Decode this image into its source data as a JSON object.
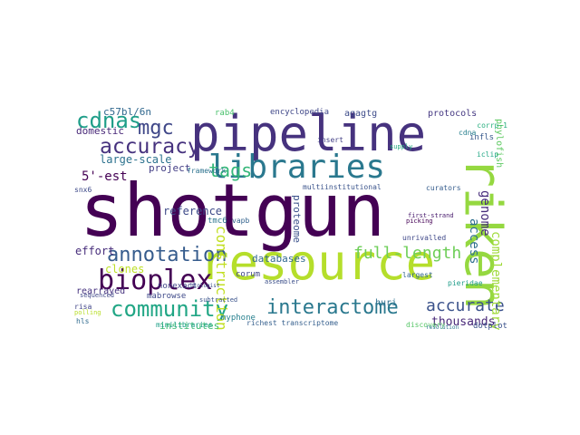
{
  "wordcloud": {
    "words": [
      {
        "text": "shotgun",
        "color": "#440154"
      },
      {
        "text": "pipeline",
        "color": "#46327e"
      },
      {
        "text": "resource",
        "color": "#b5de2b"
      },
      {
        "text": "libraries",
        "color": "#2a788e"
      },
      {
        "text": "riken",
        "color": "#95d840"
      },
      {
        "text": "bioplex",
        "color": "#440154"
      },
      {
        "text": "annotation",
        "color": "#365c8d"
      },
      {
        "text": "community",
        "color": "#21a685"
      },
      {
        "text": "interactome",
        "color": "#2a788e"
      },
      {
        "text": "accuracy",
        "color": "#46327e"
      },
      {
        "text": "cdnas",
        "color": "#1f9e89"
      },
      {
        "text": "tags",
        "color": "#35b779"
      },
      {
        "text": "mgc",
        "color": "#3f4788"
      },
      {
        "text": "full-length",
        "color": "#6ece58"
      },
      {
        "text": "accurate",
        "color": "#3b528b"
      },
      {
        "text": "complementary",
        "color": "#9fda3a"
      },
      {
        "text": "construction",
        "color": "#c2df23"
      },
      {
        "text": "access",
        "color": "#2e6f8e"
      },
      {
        "text": "genome",
        "color": "#472d7b"
      },
      {
        "text": "proteome",
        "color": "#3b528b"
      },
      {
        "text": "thousands",
        "color": "#482878"
      },
      {
        "text": "5'-est",
        "color": "#440154"
      },
      {
        "text": "large-scale",
        "color": "#2c728e"
      },
      {
        "text": "reference",
        "color": "#3e4a89"
      },
      {
        "text": "clones",
        "color": "#bddf26"
      },
      {
        "text": "databases",
        "color": "#31688e"
      },
      {
        "text": "institutes",
        "color": "#3dbc74"
      },
      {
        "text": "effort",
        "color": "#472d7b"
      },
      {
        "text": "domestic",
        "color": "#482878"
      },
      {
        "text": "rearrayed",
        "color": "#46337f"
      },
      {
        "text": "project",
        "color": "#433e85"
      },
      {
        "text": "c57bl/6n",
        "color": "#31688e"
      },
      {
        "text": "encyclopedia",
        "color": "#3f4788"
      },
      {
        "text": "agagtg",
        "color": "#3e4c8a"
      },
      {
        "text": "protocols",
        "color": "#453882"
      },
      {
        "text": "huri",
        "color": "#2d708e"
      },
      {
        "text": "nonexact",
        "color": "#414487"
      },
      {
        "text": "mabrowse",
        "color": "#3e4989"
      },
      {
        "text": "myphone",
        "color": "#27808e"
      },
      {
        "text": "minilibraries",
        "color": "#1fa088"
      },
      {
        "text": "phylofish",
        "color": "#5ec962"
      },
      {
        "text": "corum",
        "color": "#404688"
      },
      {
        "text": "tmc6",
        "color": "#2b758e"
      },
      {
        "text": "richest transcriptome",
        "color": "#355f8d"
      },
      {
        "text": "multiinstitutional",
        "color": "#3a538b"
      },
      {
        "text": "discovery",
        "color": "#56c667"
      },
      {
        "text": "dotplot",
        "color": "#3b528b"
      },
      {
        "text": "infls",
        "color": "#38598c"
      },
      {
        "text": "corrp-1",
        "color": "#29af7f"
      },
      {
        "text": "cdna",
        "color": "#277f8e"
      },
      {
        "text": "iclip",
        "color": "#22a785"
      },
      {
        "text": "framework",
        "color": "#2c728e"
      },
      {
        "text": "rab4",
        "color": "#4ac16d"
      },
      {
        "text": "snx6",
        "color": "#3e4a89"
      },
      {
        "text": "insert",
        "color": "#423f85"
      },
      {
        "text": "largest",
        "color": "#31668e"
      },
      {
        "text": "unrivalled",
        "color": "#3f4889"
      },
      {
        "text": "vapb",
        "color": "#33638d"
      },
      {
        "text": "risa",
        "color": "#404588"
      },
      {
        "text": "hls",
        "color": "#2f6b8e"
      },
      {
        "text": "polling",
        "color": "#b8de29"
      },
      {
        "text": "assembler",
        "color": "#3c4f8a"
      },
      {
        "text": "curators",
        "color": "#365d8d"
      },
      {
        "text": "picking",
        "color": "#440154"
      },
      {
        "text": "sequenced",
        "color": "#3f4788"
      },
      {
        "text": "subtracted",
        "color": "#3a538b"
      },
      {
        "text": "biologist",
        "color": "#3b518b"
      },
      {
        "text": "first-strand",
        "color": "#481b6d"
      },
      {
        "text": "pieridae",
        "color": "#1e9c89"
      },
      {
        "text": "resolution",
        "color": "#2a768e"
      },
      {
        "text": "supply",
        "color": "#27ad81"
      }
    ]
  }
}
